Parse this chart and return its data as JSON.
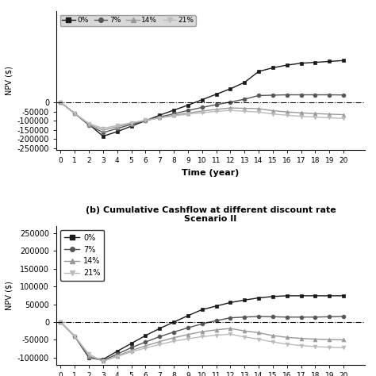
{
  "title_b": "(b) Cumulative Cashflow at different discount rate\nScenario II",
  "xlabel": "Time (year)",
  "ylabel_a": "NPV ($)",
  "ylabel_b": "NPV ($)",
  "time": [
    0,
    1,
    2,
    3,
    4,
    5,
    6,
    7,
    8,
    9,
    10,
    11,
    12,
    13,
    14,
    15,
    16,
    17,
    18,
    19,
    20
  ],
  "scenario_a": {
    "rate_0": [
      0,
      -60000,
      -120000,
      -185000,
      -160000,
      -130000,
      -100000,
      -70000,
      -42000,
      -15000,
      15000,
      45000,
      75000,
      110000,
      170000,
      190000,
      205000,
      215000,
      220000,
      225000,
      230000
    ],
    "rate_7": [
      0,
      -60000,
      -125000,
      -165000,
      -143000,
      -120000,
      -100000,
      -80000,
      -62000,
      -44000,
      -27000,
      -12000,
      2000,
      18000,
      38000,
      40000,
      42000,
      42000,
      42000,
      42000,
      41000
    ],
    "rate_14": [
      0,
      -60000,
      -120000,
      -152000,
      -133000,
      -115000,
      -99000,
      -84000,
      -70000,
      -58000,
      -47000,
      -38000,
      -30000,
      -32000,
      -34000,
      -45000,
      -52000,
      -57000,
      -61000,
      -64000,
      -67000
    ],
    "rate_21": [
      0,
      -60000,
      -115000,
      -142000,
      -126000,
      -111000,
      -97000,
      -85000,
      -74000,
      -64000,
      -56000,
      -49000,
      -43000,
      -48000,
      -53000,
      -63000,
      -70000,
      -76000,
      -80000,
      -84000,
      -87000
    ]
  },
  "scenario_b": {
    "rate_0": [
      0,
      -40000,
      -100000,
      -105000,
      -82000,
      -60000,
      -38000,
      -18000,
      0,
      18000,
      35000,
      45000,
      55000,
      62000,
      68000,
      72000,
      74000,
      74000,
      74000,
      74000,
      74000
    ],
    "rate_7": [
      0,
      -40000,
      -100000,
      -108000,
      -90000,
      -72000,
      -56000,
      -41000,
      -28000,
      -16000,
      -5000,
      4000,
      12000,
      14000,
      16000,
      15000,
      14000,
      14000,
      14000,
      15000,
      16000
    ],
    "rate_14": [
      0,
      -40000,
      -95000,
      -110000,
      -95000,
      -80000,
      -67000,
      -55000,
      -44000,
      -35000,
      -27000,
      -22000,
      -18000,
      -25000,
      -30000,
      -38000,
      -43000,
      -46000,
      -48000,
      -49000,
      -50000
    ],
    "rate_21": [
      0,
      -40000,
      -90000,
      -110000,
      -97000,
      -84000,
      -73000,
      -63000,
      -54000,
      -47000,
      -41000,
      -37000,
      -34000,
      -42000,
      -48000,
      -56000,
      -62000,
      -66000,
      -69000,
      -71000,
      -72000
    ]
  },
  "colors": [
    "#1a1a1a",
    "#555555",
    "#999999",
    "#bbbbbb"
  ],
  "markers": [
    "s",
    "o",
    "^",
    "v"
  ],
  "legend_labels": [
    "0%",
    "7%",
    "14%",
    "21%"
  ],
  "ylim_a": [
    -260000,
    500000
  ],
  "yticks_a": [
    -250000,
    -200000,
    -150000,
    -100000,
    -50000,
    0
  ],
  "ylim_b": [
    -120000,
    270000
  ],
  "yticks_b": [
    -100000,
    -50000,
    0,
    50000,
    100000,
    150000,
    200000,
    250000
  ]
}
